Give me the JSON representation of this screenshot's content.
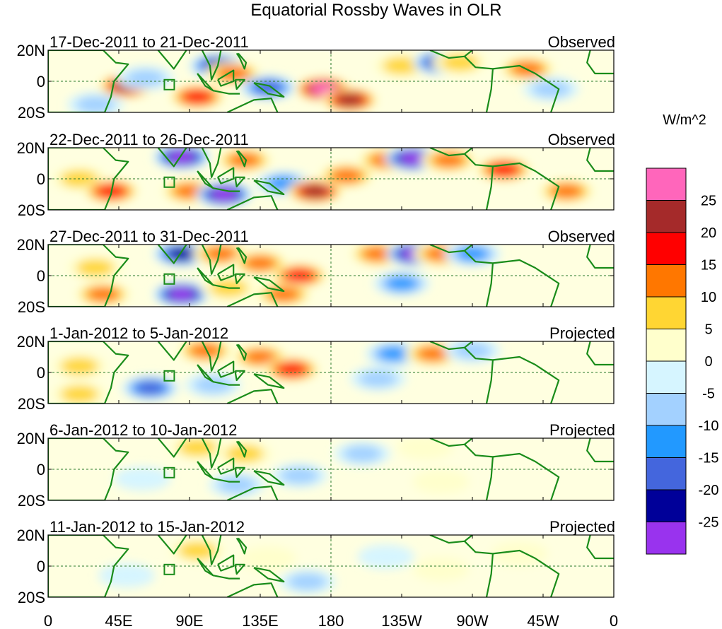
{
  "chart_data": {
    "type": "heatmap",
    "title": "Equatorial Rossby Waves in OLR",
    "colorbar": {
      "units": "W/m^2",
      "levels": [
        25,
        20,
        15,
        10,
        5,
        0,
        -5,
        -10,
        -15,
        -20,
        -25
      ],
      "level_labels": [
        "25",
        "20",
        "15",
        "10",
        "5",
        "0",
        "-5",
        "-10",
        "-15",
        "-20",
        "-25"
      ],
      "colors": [
        "#ff66bb",
        "#a52a2a",
        "#ff0000",
        "#ff7700",
        "#ffd633",
        "#ffffcc",
        "#d6f5ff",
        "#a3d1ff",
        "#2299ff",
        "#4466dd",
        "#000099",
        "#9933ee"
      ]
    },
    "x_axis": {
      "ticks": [
        "0",
        "45E",
        "90E",
        "135E",
        "180",
        "135W",
        "90W",
        "45W",
        "0"
      ],
      "range_deg": [
        0,
        360
      ]
    },
    "y_axis": {
      "ticks": [
        "20N",
        "0",
        "20S"
      ],
      "range_deg": [
        -20,
        20
      ]
    },
    "panels": [
      {
        "period": "17-Dec-2011 to 21-Dec-2011",
        "type": "Observed",
        "anomalies": [
          {
            "lon": 50,
            "lat": -3,
            "value": 22
          },
          {
            "lon": 62,
            "lat": 2,
            "value": -8
          },
          {
            "lon": 95,
            "lat": -10,
            "value": 16
          },
          {
            "lon": 108,
            "lat": 10,
            "value": -22
          },
          {
            "lon": 118,
            "lat": 5,
            "value": 12
          },
          {
            "lon": 140,
            "lat": -4,
            "value": -20
          },
          {
            "lon": 175,
            "lat": -5,
            "value": 27
          },
          {
            "lon": 192,
            "lat": -12,
            "value": 22
          },
          {
            "lon": 225,
            "lat": 10,
            "value": 8
          },
          {
            "lon": 250,
            "lat": 12,
            "value": -22
          },
          {
            "lon": 262,
            "lat": 12,
            "value": 10
          },
          {
            "lon": 305,
            "lat": 8,
            "value": 12
          },
          {
            "lon": 320,
            "lat": -5,
            "value": -8
          },
          {
            "lon": 30,
            "lat": -15,
            "value": -6
          }
        ]
      },
      {
        "period": "22-Dec-2011 to 26-Dec-2011",
        "type": "Observed",
        "anomalies": [
          {
            "lon": 20,
            "lat": 0,
            "value": 10
          },
          {
            "lon": 40,
            "lat": -8,
            "value": 18
          },
          {
            "lon": 85,
            "lat": 14,
            "value": -26
          },
          {
            "lon": 90,
            "lat": -8,
            "value": 12
          },
          {
            "lon": 112,
            "lat": -10,
            "value": -26
          },
          {
            "lon": 125,
            "lat": 12,
            "value": 14
          },
          {
            "lon": 150,
            "lat": -3,
            "value": -12
          },
          {
            "lon": 170,
            "lat": -8,
            "value": 24
          },
          {
            "lon": 190,
            "lat": 2,
            "value": 12
          },
          {
            "lon": 215,
            "lat": 12,
            "value": 15
          },
          {
            "lon": 232,
            "lat": 13,
            "value": -26
          },
          {
            "lon": 255,
            "lat": 12,
            "value": 12
          },
          {
            "lon": 290,
            "lat": 6,
            "value": 18
          },
          {
            "lon": 330,
            "lat": -8,
            "value": 14
          }
        ]
      },
      {
        "period": "27-Dec-2011 to 31-Dec-2011",
        "type": "Observed",
        "anomalies": [
          {
            "lon": 30,
            "lat": 5,
            "value": 10
          },
          {
            "lon": 35,
            "lat": -12,
            "value": 14
          },
          {
            "lon": 85,
            "lat": 14,
            "value": -24
          },
          {
            "lon": 85,
            "lat": -12,
            "value": -26
          },
          {
            "lon": 110,
            "lat": 14,
            "value": 12
          },
          {
            "lon": 115,
            "lat": -8,
            "value": 10
          },
          {
            "lon": 135,
            "lat": 8,
            "value": 15
          },
          {
            "lon": 160,
            "lat": 0,
            "value": 20
          },
          {
            "lon": 150,
            "lat": -12,
            "value": 14
          },
          {
            "lon": 210,
            "lat": 14,
            "value": 15
          },
          {
            "lon": 233,
            "lat": 14,
            "value": -26
          },
          {
            "lon": 250,
            "lat": 14,
            "value": 12
          },
          {
            "lon": 270,
            "lat": 14,
            "value": -12
          },
          {
            "lon": 225,
            "lat": -5,
            "value": -12
          }
        ]
      },
      {
        "period": "1-Jan-2012 to 5-Jan-2012",
        "type": "Projected",
        "anomalies": [
          {
            "lon": 20,
            "lat": 4,
            "value": 6
          },
          {
            "lon": 65,
            "lat": -10,
            "value": -16
          },
          {
            "lon": 100,
            "lat": 14,
            "value": 12
          },
          {
            "lon": 105,
            "lat": -8,
            "value": -10
          },
          {
            "lon": 135,
            "lat": 10,
            "value": 14
          },
          {
            "lon": 155,
            "lat": 2,
            "value": 18
          },
          {
            "lon": 220,
            "lat": 12,
            "value": -12
          },
          {
            "lon": 245,
            "lat": 12,
            "value": 12
          },
          {
            "lon": 270,
            "lat": 14,
            "value": -10
          },
          {
            "lon": 210,
            "lat": -4,
            "value": -6
          },
          {
            "lon": 20,
            "lat": -14,
            "value": 8
          }
        ]
      },
      {
        "period": "6-Jan-2012 to 10-Jan-2012",
        "type": "Projected",
        "anomalies": [
          {
            "lon": 95,
            "lat": 14,
            "value": 10
          },
          {
            "lon": 125,
            "lat": 10,
            "value": 6
          },
          {
            "lon": 120,
            "lat": -10,
            "value": -8
          },
          {
            "lon": 160,
            "lat": -4,
            "value": -8
          },
          {
            "lon": 200,
            "lat": 10,
            "value": -6
          },
          {
            "lon": 240,
            "lat": 14,
            "value": 5
          },
          {
            "lon": 250,
            "lat": -8,
            "value": 4
          },
          {
            "lon": 60,
            "lat": -6,
            "value": -4
          }
        ]
      },
      {
        "period": "11-Jan-2012 to 15-Jan-2012",
        "type": "Projected",
        "anomalies": [
          {
            "lon": 95,
            "lat": 10,
            "value": 6
          },
          {
            "lon": 140,
            "lat": 5,
            "value": 5
          },
          {
            "lon": 165,
            "lat": -10,
            "value": -8
          },
          {
            "lon": 215,
            "lat": 6,
            "value": -5
          },
          {
            "lon": 250,
            "lat": -2,
            "value": 3
          },
          {
            "lon": 50,
            "lat": -6,
            "value": -4
          },
          {
            "lon": 300,
            "lat": 8,
            "value": 3
          }
        ]
      }
    ]
  }
}
